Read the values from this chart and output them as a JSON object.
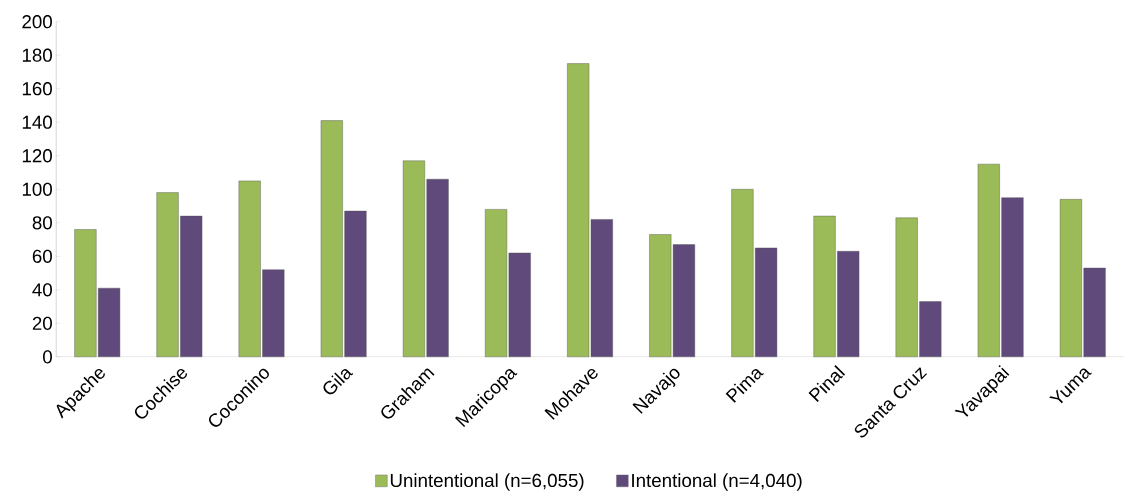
{
  "chart_data": {
    "type": "bar",
    "categories": [
      "Apache",
      "Cochise",
      "Coconino",
      "Gila",
      "Graham",
      "Maricopa",
      "Mohave",
      "Navajo",
      "Pima",
      "Pinal",
      "Santa Cruz",
      "Yavapai",
      "Yuma"
    ],
    "series": [
      {
        "name": "Unintentional (n=6,055)",
        "color": "#9bbb59",
        "values": [
          76,
          98,
          105,
          141,
          117,
          88,
          175,
          73,
          100,
          84,
          83,
          115,
          94
        ]
      },
      {
        "name": "Intentional (n=4,040)",
        "color": "#604a7b",
        "values": [
          41,
          84,
          52,
          87,
          106,
          62,
          82,
          67,
          65,
          63,
          33,
          95,
          53
        ]
      }
    ],
    "ylim": [
      0,
      200
    ],
    "yticks": [
      0,
      20,
      40,
      60,
      80,
      100,
      120,
      140,
      160,
      180,
      200
    ],
    "grid": false,
    "legend": "bottom"
  }
}
